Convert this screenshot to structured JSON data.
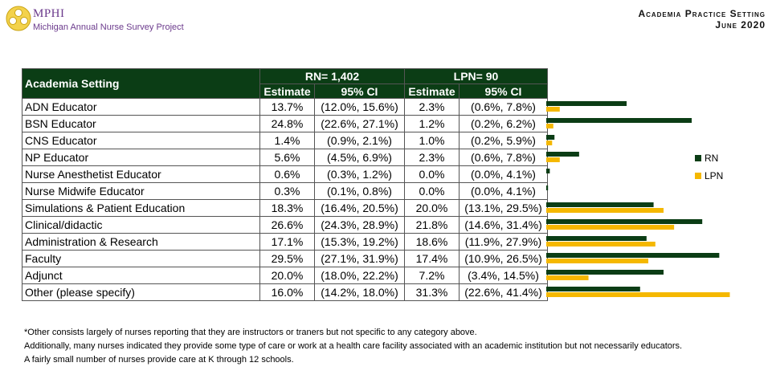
{
  "header": {
    "org_name": "MPHI",
    "org_subtitle": "Michigan Annual Nurse Survey Project",
    "title_line1": "Academia Practice Setting",
    "title_line2": "June 2020"
  },
  "table": {
    "setting_header": "Academia Setting",
    "rn_group": "RN= 1,402",
    "lpn_group": "LPN= 90",
    "col_estimate": "Estimate",
    "col_ci": "95% CI",
    "rows": [
      {
        "setting": "ADN Educator",
        "rn_est": "13.7%",
        "rn_ci": "(12.0%, 15.6%)",
        "lpn_est": "2.3%",
        "lpn_ci": "(0.6%, 7.8%)"
      },
      {
        "setting": "BSN Educator",
        "rn_est": "24.8%",
        "rn_ci": "(22.6%, 27.1%)",
        "lpn_est": "1.2%",
        "lpn_ci": "(0.2%, 6.2%)"
      },
      {
        "setting": "CNS Educator",
        "rn_est": "1.4%",
        "rn_ci": "(0.9%, 2.1%)",
        "lpn_est": "1.0%",
        "lpn_ci": "(0.2%, 5.9%)"
      },
      {
        "setting": "NP Educator",
        "rn_est": "5.6%",
        "rn_ci": "(4.5%, 6.9%)",
        "lpn_est": "2.3%",
        "lpn_ci": "(0.6%, 7.8%)"
      },
      {
        "setting": "Nurse Anesthetist Educator",
        "rn_est": "0.6%",
        "rn_ci": "(0.3%, 1.2%)",
        "lpn_est": "0.0%",
        "lpn_ci": "(0.0%, 4.1%)"
      },
      {
        "setting": "Nurse Midwife Educator",
        "rn_est": "0.3%",
        "rn_ci": "(0.1%, 0.8%)",
        "lpn_est": "0.0%",
        "lpn_ci": "(0.0%, 4.1%)"
      },
      {
        "setting": "Simulations & Patient Education",
        "rn_est": "18.3%",
        "rn_ci": "(16.4%, 20.5%)",
        "lpn_est": "20.0%",
        "lpn_ci": "(13.1%, 29.5%)"
      },
      {
        "setting": "Clinical/didactic",
        "rn_est": "26.6%",
        "rn_ci": "(24.3%, 28.9%)",
        "lpn_est": "21.8%",
        "lpn_ci": "(14.6%, 31.4%)"
      },
      {
        "setting": "Administration & Research",
        "rn_est": "17.1%",
        "rn_ci": "(15.3%, 19.2%)",
        "lpn_est": "18.6%",
        "lpn_ci": "(11.9%, 27.9%)"
      },
      {
        "setting": "Faculty",
        "rn_est": "29.5%",
        "rn_ci": "(27.1%, 31.9%)",
        "lpn_est": "17.4%",
        "lpn_ci": "(10.9%, 26.5%)"
      },
      {
        "setting": "Adjunct",
        "rn_est": "20.0%",
        "rn_ci": "(18.0%, 22.2%)",
        "lpn_est": "7.2%",
        "lpn_ci": "(3.4%, 14.5%)"
      },
      {
        "setting": "Other (please specify)",
        "rn_est": "16.0%",
        "rn_ci": "(14.2%, 18.0%)",
        "lpn_est": "31.3%",
        "lpn_ci": "(22.6%, 41.4%)"
      }
    ]
  },
  "chart_data": {
    "type": "bar",
    "orientation": "horizontal",
    "categories": [
      "ADN Educator",
      "BSN Educator",
      "CNS Educator",
      "NP Educator",
      "Nurse Anesthetist Educator",
      "Nurse Midwife Educator",
      "Simulations & Patient Education",
      "Clinical/didactic",
      "Administration & Research",
      "Faculty",
      "Adjunct",
      "Other (please specify)"
    ],
    "series": [
      {
        "name": "RN",
        "color": "#0b3d15",
        "values": [
          13.7,
          24.8,
          1.4,
          5.6,
          0.6,
          0.3,
          18.3,
          26.6,
          17.1,
          29.5,
          20.0,
          16.0
        ]
      },
      {
        "name": "LPN",
        "color": "#f5b800",
        "values": [
          2.3,
          1.2,
          1.0,
          2.3,
          0.0,
          0.0,
          20.0,
          21.8,
          18.6,
          17.4,
          7.2,
          31.3
        ]
      }
    ],
    "title": "",
    "xlabel": "",
    "ylabel": "",
    "xlim": [
      0,
      31.3
    ],
    "legend": "right",
    "grid": false
  },
  "colors": {
    "rn": "#0b3d15",
    "lpn": "#f5b800",
    "header_bg": "#0b3d15",
    "brand": "#6b3a8c"
  },
  "footnote": [
    "*Other consists largely of nurses reporting that they are instructors or traners but not specific to any category above.",
    "Additionally, many nurses indicated they provide some type of care or work at a health care facility associated with an academic institution but not necessarily educators.",
    "A fairly small number of nurses provide care at K through 12 schools."
  ]
}
